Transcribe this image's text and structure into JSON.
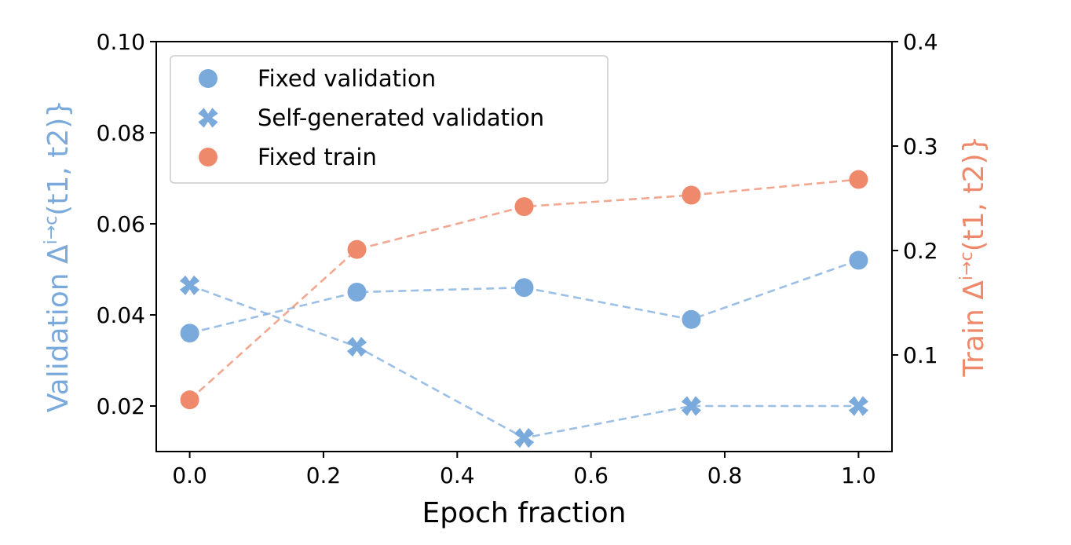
{
  "chart_data": {
    "type": "line",
    "xlabel": "Epoch fraction",
    "ylabel_left": "Validation Δ^{i→c}(t1, t2)}",
    "ylabel_left_parts": {
      "prefix": "Validation Δ",
      "sup": "i→c",
      "suffix": "(t1, t2)}"
    },
    "ylabel_right": "Train Δ^{i→c}(t1, t2)}",
    "ylabel_right_parts": {
      "prefix": "Train Δ",
      "sup": "i→c",
      "suffix": "(t1, t2)}"
    },
    "xlim": [
      -0.05,
      1.05
    ],
    "ylim_left": [
      0.01,
      0.1
    ],
    "ylim_right": [
      0.0075,
      0.4
    ],
    "x_ticks": [
      0.0,
      0.2,
      0.4,
      0.6,
      0.8,
      1.0
    ],
    "x_tick_labels": [
      "0.0",
      "0.2",
      "0.4",
      "0.6",
      "0.8",
      "1.0"
    ],
    "y_left_ticks": [
      0.02,
      0.04,
      0.06,
      0.08,
      0.1
    ],
    "y_left_tick_labels": [
      "0.02",
      "0.04",
      "0.06",
      "0.08",
      "0.10"
    ],
    "y_right_ticks": [
      0.1,
      0.2,
      0.3,
      0.4
    ],
    "y_right_tick_labels": [
      "0.1",
      "0.2",
      "0.3",
      "0.4"
    ],
    "legend_position": "top-left",
    "series": [
      {
        "name": "Fixed validation",
        "axis": "left",
        "marker": "circle",
        "color": "#7aa9dc",
        "x": [
          0.0,
          0.25,
          0.5,
          0.75,
          1.0
        ],
        "values": [
          0.036,
          0.045,
          0.046,
          0.039,
          0.052
        ]
      },
      {
        "name": "Self-generated validation",
        "axis": "left",
        "marker": "x",
        "color": "#7aa9dc",
        "x": [
          0.0,
          0.25,
          0.5,
          0.75,
          1.0
        ],
        "values": [
          0.0465,
          0.033,
          0.013,
          0.02,
          0.02
        ]
      },
      {
        "name": "Fixed train",
        "axis": "right",
        "marker": "circle",
        "color": "#ee8a6b",
        "x": [
          0.0,
          0.25,
          0.5,
          0.75,
          1.0
        ],
        "values": [
          0.057,
          0.201,
          0.242,
          0.253,
          0.268
        ]
      }
    ],
    "colors": {
      "validation": "#7aa9dc",
      "train": "#ee8a6b",
      "axis": "#000000"
    }
  }
}
